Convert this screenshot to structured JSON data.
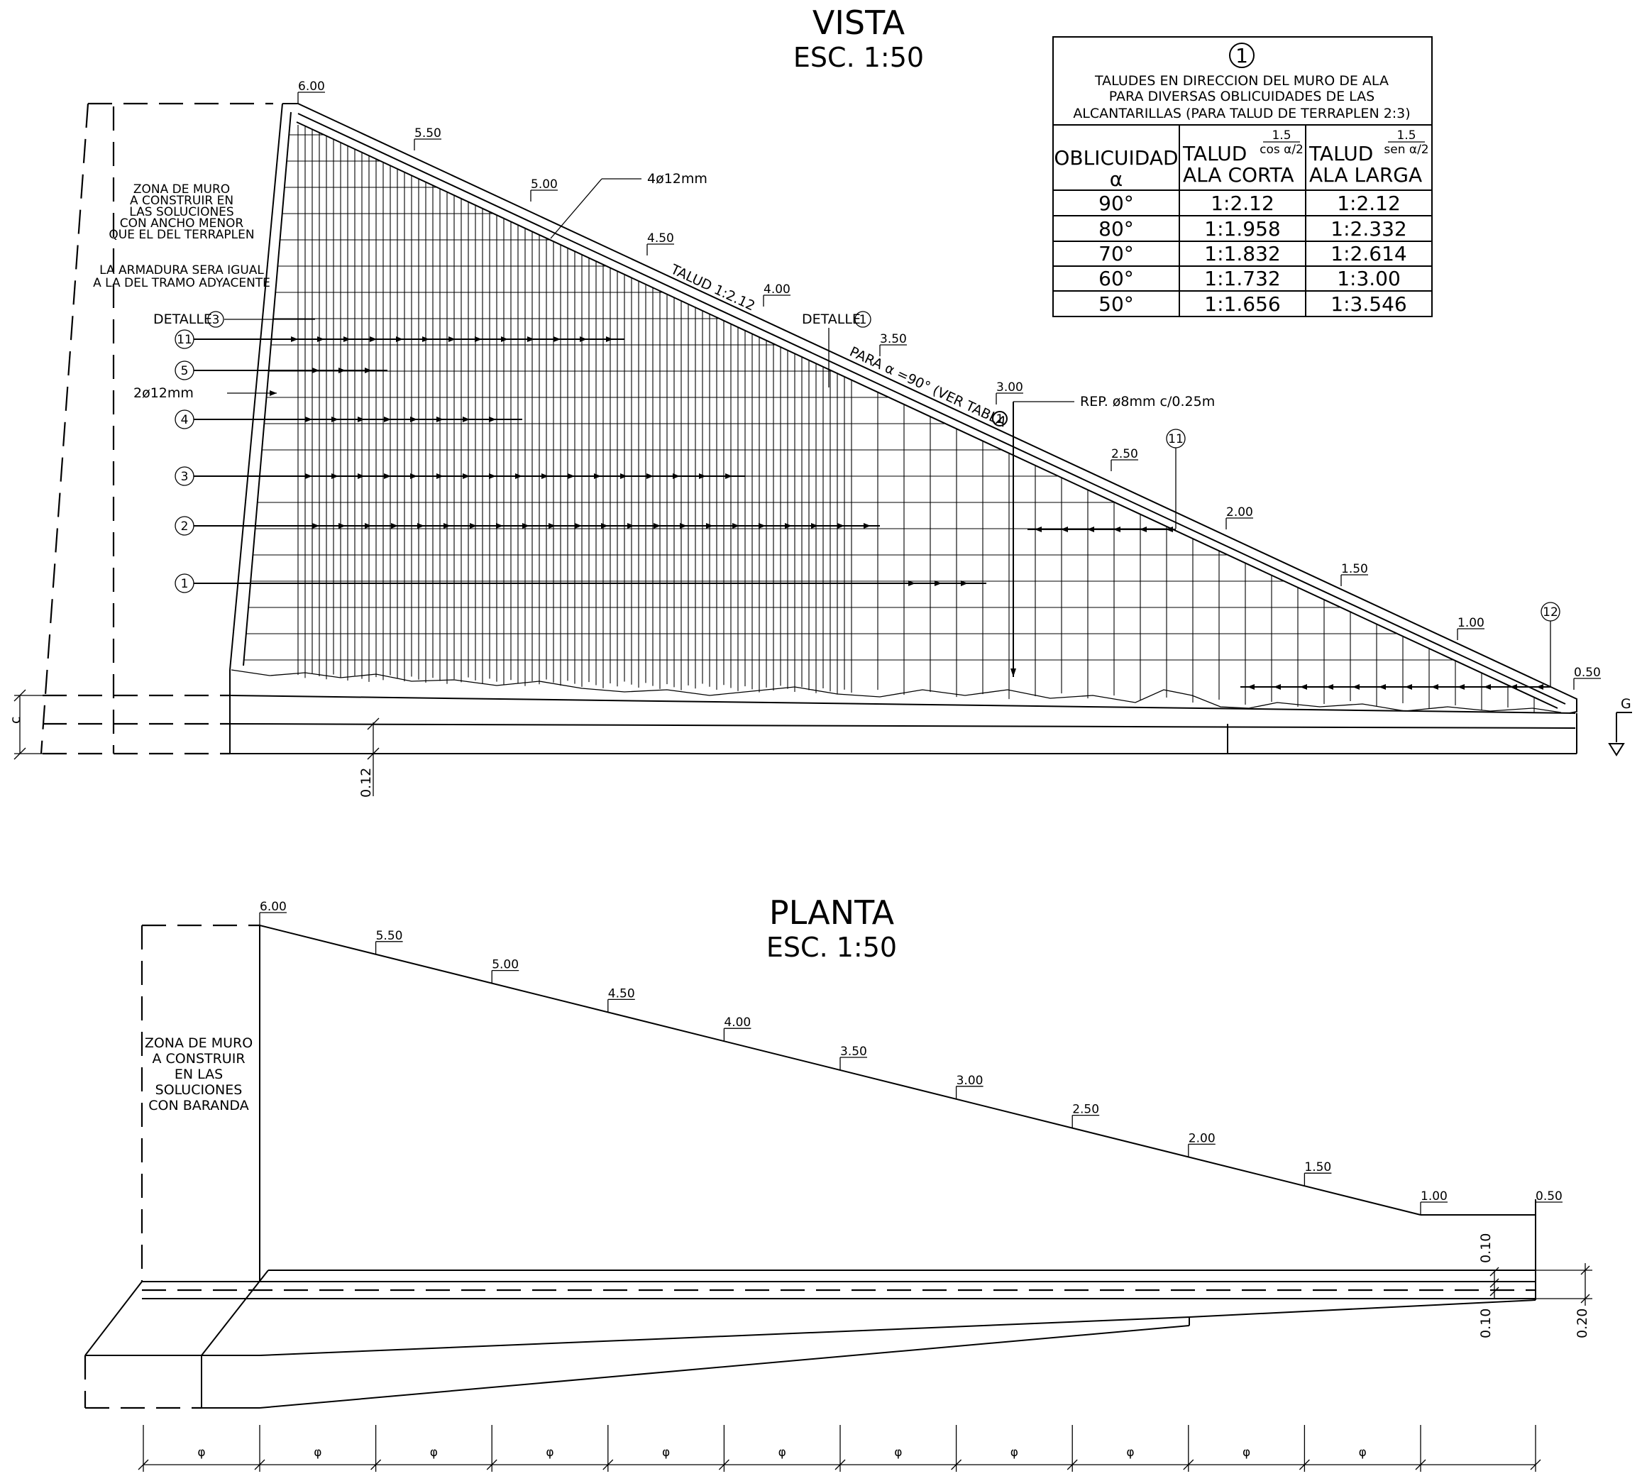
{
  "vista": {
    "title": "VISTA",
    "scale": "ESC. 1:50",
    "zone_note": [
      "ZONA DE MURO",
      "A CONSTRUIR EN",
      "LAS SOLUCIONES",
      "CON ANCHO MENOR",
      "QUE EL DEL TERRAPLEN"
    ],
    "armadura_note": [
      "LA ARMADURA SERA IGUAL",
      "A LA DEL TRAMO ADYACENTE"
    ],
    "detalle_3": "DETALLE",
    "detalle_3_num": "3",
    "detalle_1": "DETALLE",
    "detalle_1_num": "1",
    "bar_4phi12": "4ø12mm",
    "bar_2phi12": "2ø12mm",
    "talud_label": "TALUD 1:2.12",
    "para_alpha": "PARA α =90° (VER TABLA",
    "tabla_num": "1",
    "rep_label": "REP. ø8mm c/0.25m",
    "heights": [
      "6.00",
      "5.50",
      "5.00",
      "4.50",
      "4.00",
      "3.50",
      "3.00",
      "2.50",
      "2.00",
      "1.50",
      "1.00",
      "0.50"
    ],
    "markers": [
      "11",
      "5",
      "4",
      "3",
      "2",
      "1"
    ],
    "marker_11_right": "11",
    "marker_12": "12",
    "dim_c": "c",
    "dim_012": "0.12",
    "section_g": "G"
  },
  "table": {
    "number": "1",
    "title_lines": [
      "TALUDES EN DIRECCION DEL MURO DE ALA",
      "PARA DIVERSAS OBLICUIDADES DE LAS",
      "ALCANTARILLAS (PARA TALUD DE TERRAPLEN 2:3)"
    ],
    "headers": {
      "col1_line1": "OBLICUIDAD",
      "col1_line2": "α",
      "col2_line1": "TALUD",
      "col2_line2": "ALA CORTA",
      "col2_formula_num": "1.5",
      "col2_formula_den": "cos α/2",
      "col3_line1": "TALUD",
      "col3_line2": "ALA LARGA",
      "col3_formula_num": "1.5",
      "col3_formula_den": "sen α/2"
    },
    "rows": [
      [
        "90°",
        "1:2.12",
        "1:2.12"
      ],
      [
        "80°",
        "1:1.958",
        "1:2.332"
      ],
      [
        "70°",
        "1:1.832",
        "1:2.614"
      ],
      [
        "60°",
        "1:1.732",
        "1:3.00"
      ],
      [
        "50°",
        "1:1.656",
        "1:3.546"
      ]
    ]
  },
  "planta": {
    "title": "PLANTA",
    "scale": "ESC. 1:50",
    "zone_note": [
      "ZONA DE MURO",
      "A CONSTRUIR",
      "EN LAS",
      "SOLUCIONES",
      "CON BARANDA"
    ],
    "heights": [
      "6.00",
      "5.50",
      "5.00",
      "4.50",
      "4.00",
      "3.50",
      "3.00",
      "2.50",
      "2.00",
      "1.50",
      "1.00",
      "0.50"
    ],
    "dim_010_top": "0.10",
    "dim_010_bottom": "0.10",
    "dim_020": "0.20",
    "phi_labels": [
      "φ",
      "φ",
      "φ",
      "φ",
      "φ",
      "φ",
      "φ",
      "φ",
      "φ",
      "φ",
      "φ"
    ]
  }
}
